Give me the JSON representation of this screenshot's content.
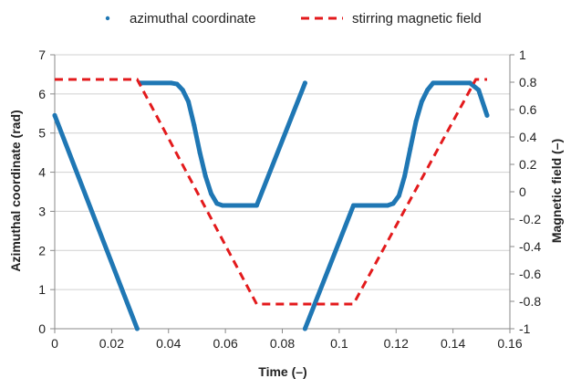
{
  "chart_data": {
    "type": "line",
    "xlabel": "Time (–)",
    "ylabel_left": "Azimuthal coordinate (rad)",
    "ylabel_right": "Magnetic field (–)",
    "xlim": [
      0,
      0.16
    ],
    "ylim_left": [
      0,
      7
    ],
    "ylim_right": [
      -1,
      1
    ],
    "x_ticks": [
      0,
      0.02,
      0.04,
      0.06,
      0.08,
      0.1,
      0.12,
      0.14,
      0.16
    ],
    "x_tick_labels": [
      "0",
      "0.02",
      "0.04",
      "0.06",
      "0.08",
      "0.1",
      "0.12",
      "0.14",
      "0.16"
    ],
    "y_left_ticks": [
      0,
      1,
      2,
      3,
      4,
      5,
      6,
      7
    ],
    "y_left_tick_labels": [
      "0",
      "1",
      "2",
      "3",
      "4",
      "5",
      "6",
      "7"
    ],
    "y_right_ticks": [
      -1,
      -0.8,
      -0.6,
      -0.4,
      -0.2,
      0,
      0.2,
      0.4,
      0.6,
      0.8,
      1
    ],
    "y_right_tick_labels": [
      "-1",
      "-0.8",
      "-0.6",
      "-0.4",
      "-0.2",
      "0",
      "0.2",
      "0.4",
      "0.6",
      "0.8",
      "1"
    ],
    "grid": true,
    "legend_position": "top",
    "series": [
      {
        "name": "azimuthal coordinate",
        "axis": "left",
        "color": "#1f77b4",
        "style": "markers",
        "segments": [
          [
            [
              0.0,
              5.45
            ],
            [
              0.029,
              0.0
            ]
          ],
          [
            [
              0.03,
              6.28
            ],
            [
              0.041,
              6.28
            ],
            [
              0.043,
              6.25
            ],
            [
              0.045,
              6.1
            ],
            [
              0.047,
              5.8
            ],
            [
              0.049,
              5.2
            ],
            [
              0.051,
              4.5
            ],
            [
              0.053,
              3.9
            ],
            [
              0.055,
              3.45
            ],
            [
              0.057,
              3.2
            ],
            [
              0.059,
              3.15
            ],
            [
              0.071,
              3.15
            ],
            [
              0.088,
              6.28
            ]
          ],
          [
            [
              0.088,
              0.0
            ],
            [
              0.105,
              3.15
            ],
            [
              0.117,
              3.15
            ],
            [
              0.119,
              3.2
            ],
            [
              0.121,
              3.4
            ],
            [
              0.123,
              3.9
            ],
            [
              0.125,
              4.6
            ],
            [
              0.127,
              5.3
            ],
            [
              0.129,
              5.8
            ],
            [
              0.131,
              6.1
            ],
            [
              0.133,
              6.28
            ],
            [
              0.146,
              6.28
            ],
            [
              0.149,
              6.1
            ],
            [
              0.152,
              5.45
            ]
          ]
        ]
      },
      {
        "name": "stirring magnetic field",
        "axis": "right",
        "color": "#e31a1c",
        "style": "dashed",
        "points": [
          [
            0.0,
            0.82
          ],
          [
            0.029,
            0.82
          ],
          [
            0.071,
            -0.82
          ],
          [
            0.105,
            -0.82
          ],
          [
            0.148,
            0.82
          ],
          [
            0.152,
            0.82
          ]
        ]
      }
    ]
  }
}
